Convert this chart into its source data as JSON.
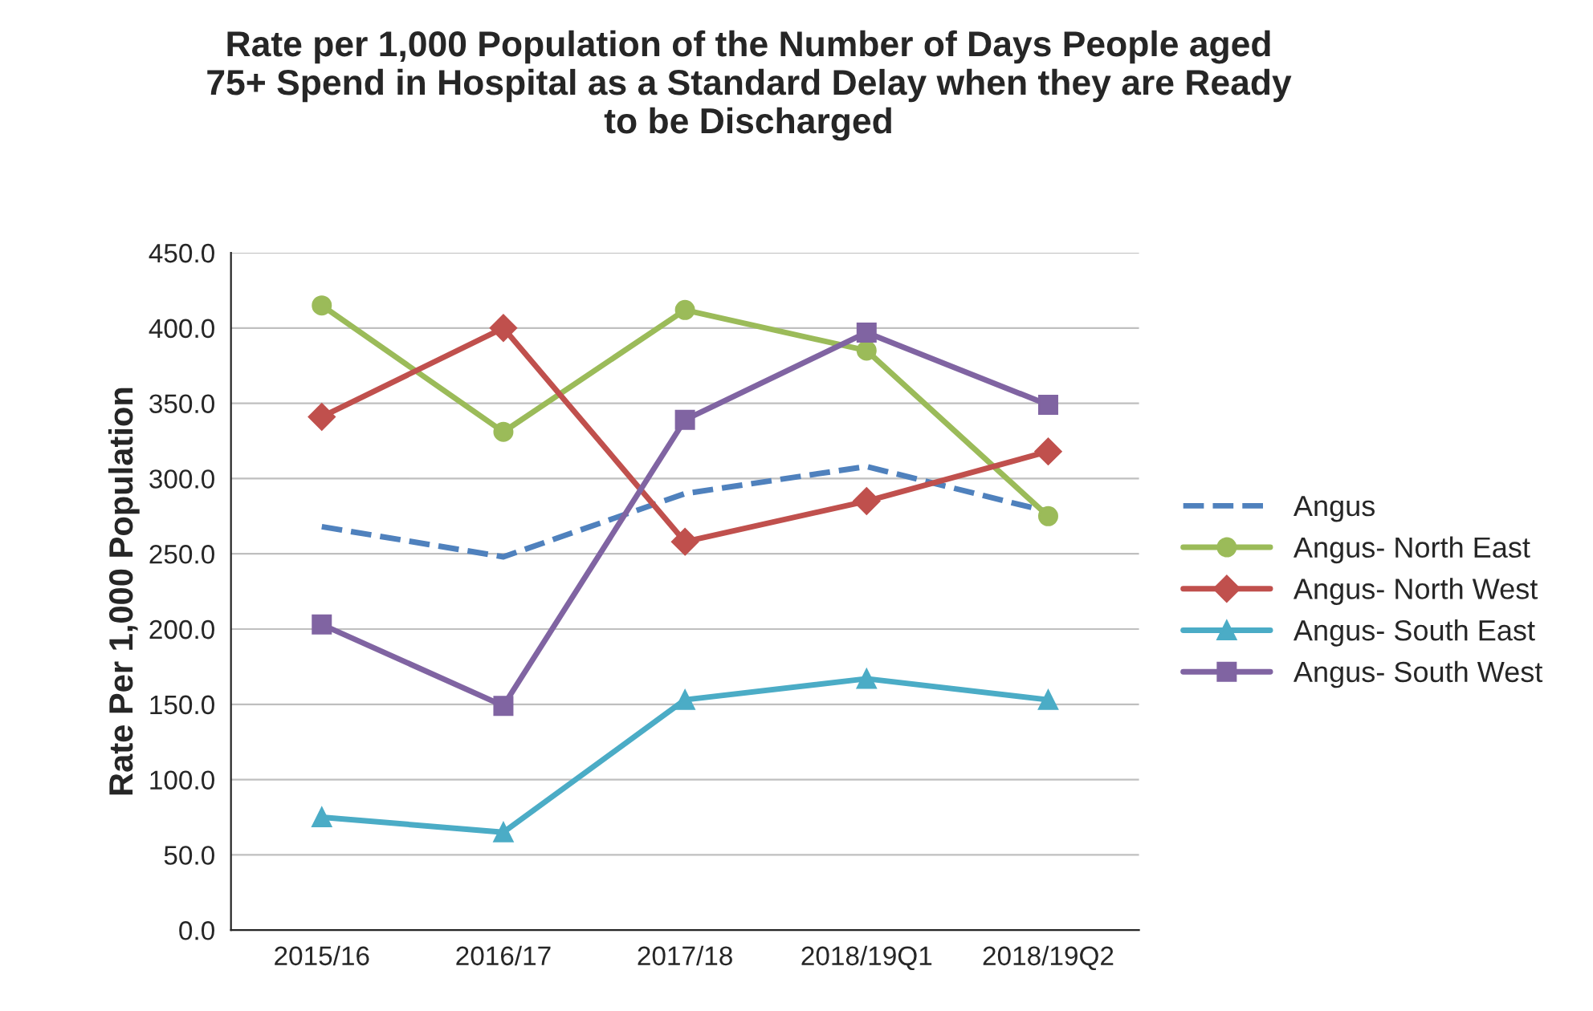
{
  "chart_data": {
    "type": "line",
    "title": "Rate per 1,000 Population of the Number of Days People aged\n75+ Spend in Hospital as a Standard Delay when they are Ready\nto be Discharged",
    "ylabel": "Rate Per 1,000 Population",
    "categories": [
      "2015/16",
      "2016/17",
      "2017/18",
      "2018/19Q1",
      "2018/19Q2"
    ],
    "series": [
      {
        "name": "Angus",
        "color": "#4f81bd",
        "values": [
          268,
          248,
          290,
          308,
          278
        ],
        "marker": "none",
        "line_style": "dashed"
      },
      {
        "name": "Angus- North East",
        "color": "#9bbb59",
        "values": [
          415,
          331,
          412,
          385,
          275
        ],
        "marker": "circle",
        "line_style": "solid"
      },
      {
        "name": "Angus- North West",
        "color": "#c0504d",
        "values": [
          341,
          400,
          258,
          285,
          318
        ],
        "marker": "diamond",
        "line_style": "solid"
      },
      {
        "name": "Angus- South East",
        "color": "#4bacc6",
        "values": [
          75,
          65,
          153,
          167,
          153
        ],
        "marker": "triangle",
        "line_style": "solid"
      },
      {
        "name": "Angus- South West",
        "color": "#8064a2",
        "values": [
          203,
          149,
          339,
          397,
          349
        ],
        "marker": "square",
        "line_style": "solid"
      }
    ],
    "ylim": [
      0,
      450
    ],
    "yticks": [
      {
        "value": 0,
        "label": "0.0"
      },
      {
        "value": 50,
        "label": "50.0"
      },
      {
        "value": 100,
        "label": "100.0"
      },
      {
        "value": 150,
        "label": "150.0"
      },
      {
        "value": 200,
        "label": "200.0"
      },
      {
        "value": 250,
        "label": "250.0"
      },
      {
        "value": 300,
        "label": "300.0"
      },
      {
        "value": 350,
        "label": "350.0"
      },
      {
        "value": 400,
        "label": "400.0"
      },
      {
        "value": 450,
        "label": "450.0"
      }
    ],
    "grid": "y",
    "legend": "right"
  }
}
